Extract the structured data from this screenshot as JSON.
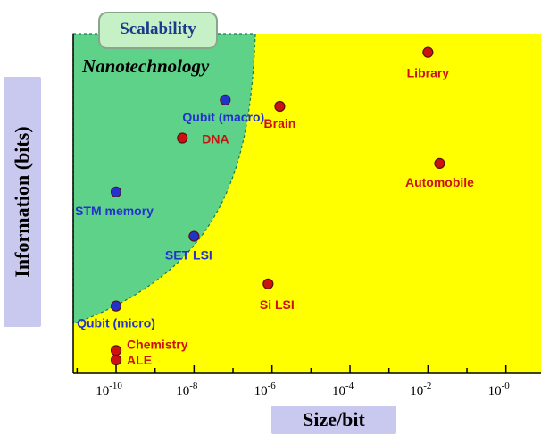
{
  "chart_data": {
    "type": "scatter",
    "xlabel": "Size/bit",
    "ylabel": "Information (bits)",
    "x_scale": "log",
    "x_ticks": [
      {
        "exp": -10,
        "label": "10",
        "sup": "-10"
      },
      {
        "exp": -8,
        "label": "10",
        "sup": "-8"
      },
      {
        "exp": -6,
        "label": "10",
        "sup": "-6"
      },
      {
        "exp": -4,
        "label": "10",
        "sup": "-4"
      },
      {
        "exp": -2,
        "label": "10",
        "sup": "-2"
      },
      {
        "exp": 0,
        "label": "10",
        "sup": "-0"
      }
    ],
    "xlim_exp": [
      -11.1,
      0.9
    ],
    "ylim": [
      0,
      100
    ],
    "regions": [
      {
        "name": "Nanotechnology",
        "color": "#5fd28a"
      },
      {
        "name": "outside",
        "color": "#ffff00"
      }
    ],
    "annotations": {
      "scalability": "Scalability",
      "nanotechnology": "Nanotechnology"
    },
    "points": [
      {
        "label": "Library",
        "x_exp": -2.0,
        "y": 97,
        "color": "#cc1111"
      },
      {
        "label": "Brain",
        "x_exp": -5.8,
        "y": 80,
        "color": "#cc1111"
      },
      {
        "label": "Qubit (macro)",
        "x_exp": -7.2,
        "y": 82,
        "color": "#2233cc"
      },
      {
        "label": "DNA",
        "x_exp": -8.3,
        "y": 70,
        "color": "#cc1111"
      },
      {
        "label": "Automobile",
        "x_exp": -1.7,
        "y": 62,
        "color": "#cc1111"
      },
      {
        "label": "STM memory",
        "x_exp": -10.0,
        "y": 53,
        "color": "#2233cc"
      },
      {
        "label": "SET LSI",
        "x_exp": -8.0,
        "y": 39,
        "color": "#2233cc"
      },
      {
        "label": "Si LSI",
        "x_exp": -6.1,
        "y": 24,
        "color": "#cc1111"
      },
      {
        "label": "Qubit (micro)",
        "x_exp": -10.0,
        "y": 17,
        "color": "#2233cc"
      },
      {
        "label": "Chemistry",
        "x_exp": -10.0,
        "y": 3,
        "color": "#cc1111"
      },
      {
        "label": "ALE",
        "x_exp": -10.0,
        "y": 0,
        "color": "#cc1111"
      }
    ]
  }
}
